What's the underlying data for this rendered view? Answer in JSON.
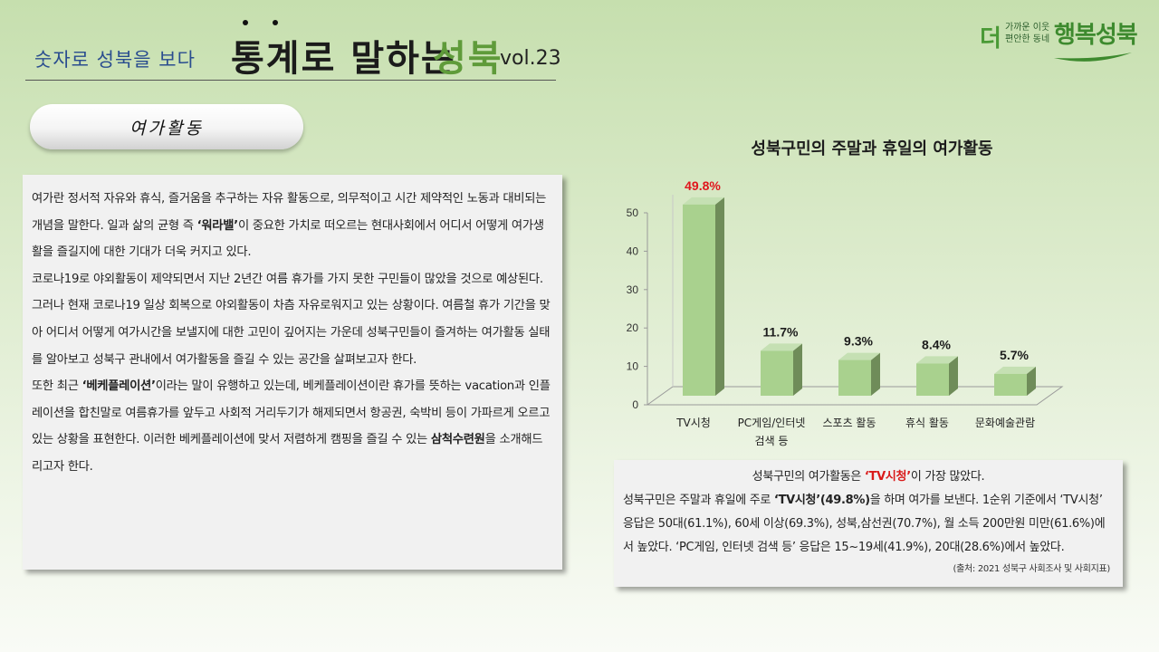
{
  "header": {
    "subtitle": "숫자로 성북을 보다",
    "title_main": "통계로 말하는",
    "title_accent": "성북",
    "volume": "vol.23"
  },
  "logo": {
    "prefix": "더",
    "tagline_1": "가까운 이웃",
    "tagline_2": "편안한 동네",
    "name": "행복성북"
  },
  "section_label": "여가활동",
  "body": {
    "p1": [
      " 여가란 정서적 자유와 휴식, 즐거움을 추구하는 자유 활동으로, 의무적이고 시간 제약적인 노동과 대비되는 개념을 말한다.  일과 삶의 균형 즉 ",
      "‘워라밸’",
      "이 중요한 가치로 떠오르는 현대사회에서 어디서 어떻게 여가생활을 즐길지에 대한 기대가 더욱 커지고 있다."
    ],
    "p2": " 코로나19로 야외활동이 제약되면서 지난 2년간 여름 휴가를 가지 못한 구민들이 많았을 것으로 예상된다. 그러나 현재 코로나19 일상 회복으로 야외활동이 차츰 자유로워지고 있는 상황이다. 여름철 휴가 기간을 맞아 어디서 어떻게 여가시간을 보낼지에 대한 고민이 깊어지는 가운데 성북구민들이 즐겨하는 여가활동 실태를 알아보고 성북구 관내에서 여가활동을 즐길 수 있는 공간을 살펴보고자 한다.",
    "p3": [
      " 또한 최근 ",
      "‘베케플레이션’",
      "이라는 말이 유행하고 있는데, 베케플레이션이란 휴가를 뜻하는 vacation과 인플레이션을 합친말로 여름휴가를 앞두고 사회적 거리두기가 해제되면서 항공권, 숙박비 등이 가파르게 오르고 있는 상황을 표현한다. 이러한 베케플레이션에 맞서 저렴하게 캠핑을 즐길 수 있는 ",
      "삼척수련원",
      "을 소개해드리고자 한다."
    ]
  },
  "chart_data": {
    "type": "bar",
    "title": "성북구민의 주말과 휴일의 여가활동",
    "categories": [
      "TV시청",
      "PC게임/인터넷 검색 등",
      "스포츠 활동",
      "휴식 활동",
      "문화예술관람"
    ],
    "category_lines": [
      [
        "TV시청"
      ],
      [
        "PC게임/인터넷",
        "검색 등"
      ],
      [
        "스포츠 활동"
      ],
      [
        "휴식 활동"
      ],
      [
        "문화예술관람"
      ]
    ],
    "values": [
      49.8,
      11.7,
      9.3,
      8.4,
      5.7
    ],
    "data_labels": [
      "49.8%",
      "11.7%",
      "9.3%",
      "8.4%",
      "5.7%"
    ],
    "highlight_index": 0,
    "ylim": [
      0,
      50
    ],
    "yticks": [
      "0",
      "10",
      "20",
      "30",
      "40",
      "50"
    ],
    "ytick_values": [
      0,
      10,
      20,
      30,
      40,
      50
    ],
    "xlabel": "",
    "ylabel": "",
    "grid": false,
    "colors": {
      "bar_front": "#a9d18e",
      "bar_side": "#6f8c59",
      "bar_top": "#c5e0b3",
      "highlight_label": "#e0161d",
      "label": "#1c1c1c"
    }
  },
  "summary": {
    "head_pre": "성북구민의 여가활동은 ",
    "head_hl": "‘TV시청’",
    "head_post": "이 가장 많았다.",
    "p_pre": " 성북구민은 주말과 휴일에 주로 ",
    "p_bold": "‘TV시청’(49.8%)",
    "p_post": "을 하며 여가를 보낸다. 1순위 기준에서 ‘TV시청’ 응답은 50대(61.1%), 60세 이상(69.3%), 성북,삼선권(70.7%), 월 소득 200만원 미만(61.6%)에서 높았다. ‘PC게임, 인터넷 검색 등’ 응답은 15~19세(41.9%), 20대(28.6%)에서 높았다.",
    "source": "(출처: 2021 성북구 사회조사 및 사회지표)"
  }
}
